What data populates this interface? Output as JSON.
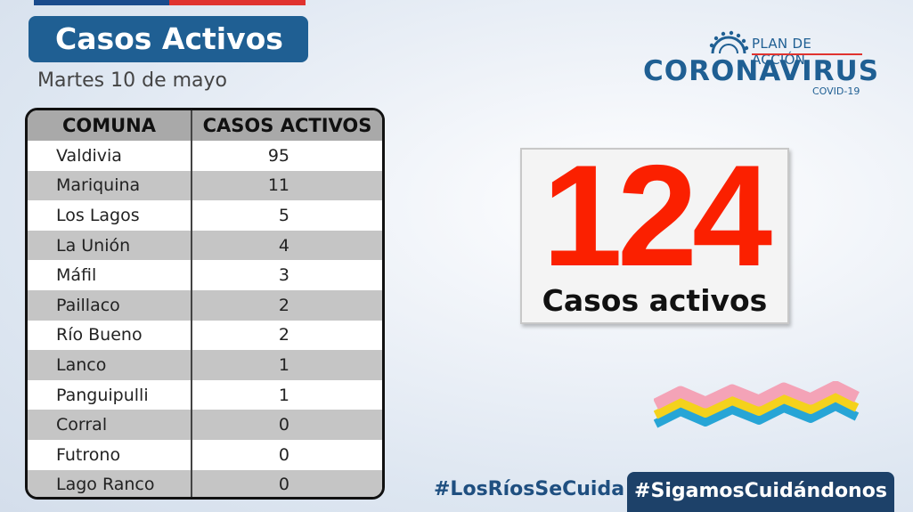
{
  "header": {
    "title": "Casos Activos",
    "date": "Martes 10 de mayo"
  },
  "table": {
    "headers": [
      "COMUNA",
      "CASOS ACTIVOS"
    ],
    "rows": [
      {
        "comuna": "Valdivia",
        "casos": "95"
      },
      {
        "comuna": "Mariquina",
        "casos": "11"
      },
      {
        "comuna": "Los Lagos",
        "casos": "5"
      },
      {
        "comuna": "La Unión",
        "casos": "4"
      },
      {
        "comuna": "Máfil",
        "casos": "3"
      },
      {
        "comuna": "Paillaco",
        "casos": "2"
      },
      {
        "comuna": "Río Bueno",
        "casos": "2"
      },
      {
        "comuna": "Lanco",
        "casos": "1"
      },
      {
        "comuna": "Panguipulli",
        "casos": "1"
      },
      {
        "comuna": "Corral",
        "casos": "0"
      },
      {
        "comuna": "Futrono",
        "casos": "0"
      },
      {
        "comuna": "Lago Ranco",
        "casos": "0"
      }
    ]
  },
  "logo": {
    "plan": "PLAN DE ACCIÓN",
    "name": "CORONAVIRUS",
    "sub": "COVID-19"
  },
  "summary": {
    "number": "124",
    "label": "Casos activos"
  },
  "footer": {
    "hashtag1": "#LosRíosSeCuida",
    "hashtag2": "#SigamosCuidándonos"
  },
  "colors": {
    "brand_blue": "#1f5f93",
    "accent_red": "#fb2000",
    "dark_navy": "#1d4169"
  }
}
